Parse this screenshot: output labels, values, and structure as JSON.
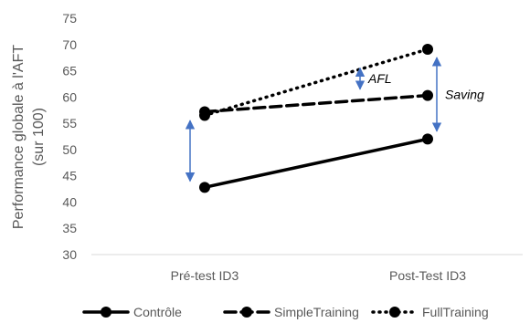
{
  "chart_data": {
    "type": "line",
    "ylabel_lines": [
      "Performance globale à l'AFT",
      "(sur 100)"
    ],
    "categories": [
      "Pré-test ID3",
      "Post-Test ID3"
    ],
    "ylim": [
      30,
      75
    ],
    "ytick_step": 5,
    "series": [
      {
        "name": "Contrôle",
        "values": [
          42.8,
          52.0
        ],
        "style": "solid"
      },
      {
        "name": "SimpleTraining",
        "values": [
          57.2,
          60.3
        ],
        "style": "dashed"
      },
      {
        "name": "FullTraining",
        "values": [
          56.5,
          69.1
        ],
        "style": "dotted"
      }
    ],
    "annotations": [
      {
        "label": "",
        "category_index": 0,
        "from": 44.0,
        "to": 55.5
      },
      {
        "label": "AFL",
        "category_index": 1,
        "from": 61.5,
        "to": 65.5
      },
      {
        "label": "Saving",
        "category_index": 1,
        "from": 53.5,
        "to": 67.5
      }
    ],
    "arrow_color": "#4472C4",
    "line_color": "#000000",
    "legend_position": "bottom"
  }
}
